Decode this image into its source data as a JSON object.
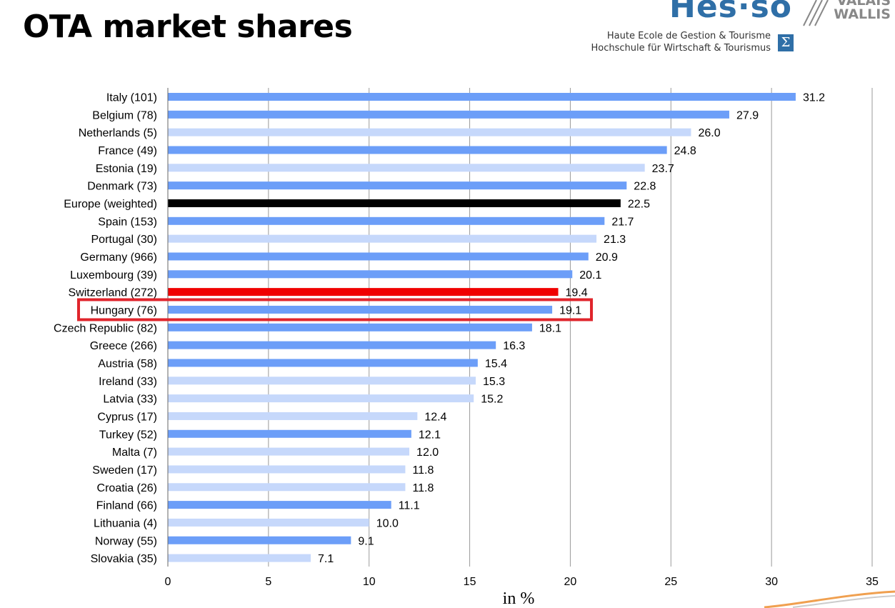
{
  "slide": {
    "title": "OTA market shares"
  },
  "logo": {
    "name": "Hes·so",
    "region": [
      "VALAIS",
      "WALLIS"
    ],
    "line1": "Haute Ecole de Gestion & Tourisme",
    "line2": "Hochschule für Wirtschaft & Tourismus",
    "sigma": "Σ"
  },
  "colors": {
    "dark_blue": "#6c9ef8",
    "light_blue": "#c6d8fb",
    "europe": "#000000",
    "switzerland": "#f00000",
    "highlight_box": "#e0252c",
    "grid": "#9a9a9a"
  },
  "chart_data": {
    "type": "bar",
    "orientation": "horizontal",
    "title": "",
    "xlabel": "in %",
    "ylabel": "",
    "xlim": [
      0,
      35
    ],
    "xticks": [
      0,
      5,
      10,
      15,
      20,
      25,
      30,
      35
    ],
    "grid": "vertical",
    "highlighted_category": "Hungary (76)",
    "categories": [
      "Italy (101)",
      "Belgium (78)",
      "Netherlands (5)",
      "France (49)",
      "Estonia (19)",
      "Denmark (73)",
      "Europe (weighted)",
      "Spain (153)",
      "Portugal (30)",
      "Germany (966)",
      "Luxembourg (39)",
      "Switzerland (272)",
      "Hungary (76)",
      "Czech Republic (82)",
      "Greece (266)",
      "Austria (58)",
      "Ireland (33)",
      "Latvia (33)",
      "Cyprus (17)",
      "Turkey (52)",
      "Malta (7)",
      "Sweden (17)",
      "Croatia (26)",
      "Finland (66)",
      "Lithuania (4)",
      "Norway (55)",
      "Slovakia (35)"
    ],
    "values": [
      31.2,
      27.9,
      26.0,
      24.8,
      23.7,
      22.8,
      22.5,
      21.7,
      21.3,
      20.9,
      20.1,
      19.4,
      19.1,
      18.1,
      16.3,
      15.4,
      15.3,
      15.2,
      12.4,
      12.1,
      12.0,
      11.8,
      11.8,
      11.1,
      10.0,
      9.1,
      7.1
    ],
    "labels": [
      "31.2",
      "27.9",
      "26.0",
      "24.8",
      "23.7",
      "22.8",
      "22.5",
      "21.7",
      "21.3",
      "20.9",
      "20.1",
      "19.4",
      "19.1",
      "18.1",
      "16.3",
      "15.4",
      "15.3",
      "15.2",
      "12.4",
      "12.1",
      "12.0",
      "11.8",
      "11.8",
      "11.1",
      "10.0",
      "9.1",
      "7.1"
    ],
    "bar_colors": [
      "dark_blue",
      "dark_blue",
      "light_blue",
      "dark_blue",
      "light_blue",
      "dark_blue",
      "europe",
      "dark_blue",
      "light_blue",
      "dark_blue",
      "dark_blue",
      "switzerland",
      "dark_blue",
      "dark_blue",
      "dark_blue",
      "dark_blue",
      "light_blue",
      "light_blue",
      "light_blue",
      "dark_blue",
      "light_blue",
      "light_blue",
      "light_blue",
      "dark_blue",
      "light_blue",
      "dark_blue",
      "light_blue"
    ]
  }
}
